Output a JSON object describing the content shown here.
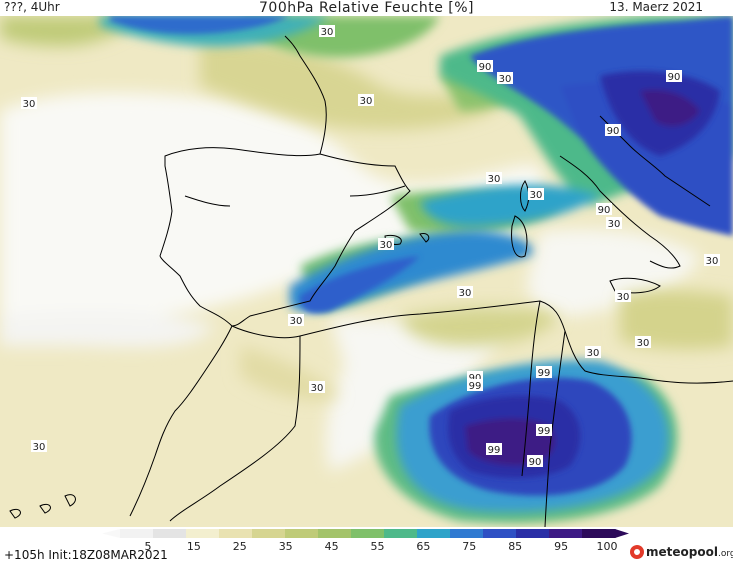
{
  "header": {
    "left": "???, 4Uhr",
    "title": "700hPa Relative Feuchte [%]",
    "date": "13. Maerz 2021"
  },
  "colorbar": {
    "ticks": [
      "5",
      "15",
      "25",
      "35",
      "45",
      "55",
      "65",
      "75",
      "85",
      "95",
      "100"
    ],
    "colors": [
      "#f2f2f2",
      "#e4e4e4",
      "#f3efcf",
      "#e9e2b1",
      "#d6d591",
      "#bfcb78",
      "#a3c36a",
      "#7fc06a",
      "#4eb98a",
      "#2ea3c9",
      "#2f7ad1",
      "#2e50c4",
      "#2a2ea6",
      "#3d1a85",
      "#2c0a5a"
    ]
  },
  "footer": {
    "run": "+105h Init:18Z08MAR2021",
    "brand_main": "meteopool",
    "brand_suffix": ".org"
  },
  "map": {
    "contour_labels": [
      "30",
      "90",
      "30",
      "90",
      "30",
      "30",
      "90",
      "30",
      "90",
      "30",
      "30",
      "30",
      "30",
      "30",
      "30",
      "30",
      "30",
      "30",
      "30",
      "90",
      "99",
      "99",
      "99",
      "99",
      "90",
      "30"
    ]
  }
}
